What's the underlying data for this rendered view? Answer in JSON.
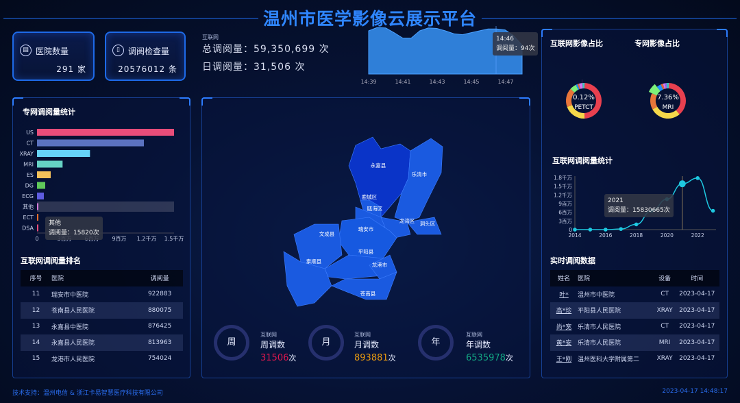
{
  "title": "温州市医学影像云展示平台",
  "stats": {
    "hospitals": {
      "label": "医院数量",
      "value": "291",
      "unit": "家",
      "icon": "hospital-icon"
    },
    "exams": {
      "label": "调阅检查量",
      "value": "20576012",
      "unit": "条",
      "icon": "document-icon"
    }
  },
  "totals": {
    "source": "互联网",
    "total_label": "总调阅量：",
    "total_value": "59,350,699",
    "total_unit": "次",
    "daily_label": "日调阅量：",
    "daily_value": "31,506",
    "daily_unit": "次"
  },
  "realtime_chart": {
    "type": "area",
    "x_ticks": [
      "14:39",
      "14:41",
      "14:43",
      "14:45",
      "14:47"
    ],
    "x": [
      "14:39",
      "14:39:30",
      "14:40",
      "14:40:30",
      "14:41",
      "14:41:30",
      "14:42",
      "14:42:30",
      "14:43",
      "14:43:30",
      "14:44",
      "14:44:30",
      "14:45",
      "14:45:30",
      "14:46",
      "14:46:30",
      "14:47",
      "14:47:30",
      "14:47:50"
    ],
    "values": [
      90,
      97,
      96,
      86,
      75,
      75,
      90,
      96,
      95,
      90,
      84,
      82,
      86,
      90,
      94,
      94,
      92,
      80,
      60
    ],
    "tooltip": {
      "time": "14:46",
      "label": "调阅量：94次"
    }
  },
  "special_stats": {
    "title": "专网调阅量统计",
    "chart_data": {
      "type": "bar",
      "orientation": "horizontal",
      "categories": [
        "US",
        "CT",
        "XRAY",
        "MRI",
        "ES",
        "DG",
        "ECG",
        "其他",
        "ECT",
        "DSA"
      ],
      "values": [
        15000000,
        11700000,
        5800000,
        2800000,
        1500000,
        900000,
        750000,
        15820,
        80000,
        80000
      ],
      "x_ticks": [
        "0",
        "3百万",
        "6百万",
        "9百万",
        "1.2千万",
        "1.5千万"
      ],
      "xlim": [
        0,
        15000000
      ],
      "colors": [
        "#e84d7a",
        "#5b72c0",
        "#66d3f8",
        "#66d2c4",
        "#f2c05a",
        "#5fc85a",
        "#5e5ce0",
        "#d57bdb",
        "#e8702a",
        "#e84d7a"
      ],
      "tooltip": {
        "name": "其他",
        "label": "调阅量：15820次"
      }
    }
  },
  "ranking": {
    "title": "互联网调阅量排名",
    "columns": [
      "序号",
      "医院",
      "调阅量"
    ],
    "rows": [
      [
        "11",
        "瑞安市中医院",
        "922883"
      ],
      [
        "12",
        "苍南县人民医院",
        "880075"
      ],
      [
        "13",
        "永嘉县中医院",
        "876425"
      ],
      [
        "14",
        "永嘉县人民医院",
        "813963"
      ],
      [
        "15",
        "龙港市人民医院",
        "754024"
      ]
    ]
  },
  "map": {
    "regions": [
      "永嘉县",
      "乐清市",
      "鹿城区",
      "瓯海区",
      "龙湾区",
      "洞头区",
      "瑞安市",
      "文成县",
      "平阳县",
      "泰顺县",
      "龙港市",
      "苍南县"
    ]
  },
  "periods": [
    {
      "circle": "周",
      "source": "互联网",
      "label": "周调数",
      "value": "31506",
      "unit": "次",
      "color": "#e0184e"
    },
    {
      "circle": "月",
      "source": "互联网",
      "label": "月调数",
      "value": "893881",
      "unit": "次",
      "color": "#e89a10"
    },
    {
      "circle": "年",
      "source": "互联网",
      "label": "年调数",
      "value": "6535978",
      "unit": "次",
      "color": "#13a884"
    }
  ],
  "donuts": [
    {
      "title": "互联网影像占比",
      "pct": "0.12%",
      "name": "PETCT",
      "chart_data": {
        "type": "pie",
        "values": [
          48,
          20,
          17,
          6,
          1.5,
          1.5,
          3,
          0.12,
          2
        ],
        "colors": [
          "#e8404f",
          "#f5d84a",
          "#e8763a",
          "#7cf07a",
          "#1e90ff",
          "#e06a3a",
          "#d577f0",
          "#ff66cc",
          "#40c8c0"
        ],
        "highlight": 7
      }
    },
    {
      "title": "专网影像占比",
      "pct": "7.36%",
      "name": "MRI",
      "chart_data": {
        "type": "pie",
        "values": [
          38,
          28,
          15,
          7.36,
          4,
          2,
          2,
          1.5,
          2
        ],
        "colors": [
          "#e8404f",
          "#f5d84a",
          "#e8763a",
          "#7cf07a",
          "#1e90ff",
          "#e06a3a",
          "#d577f0",
          "#8a6cf0",
          "#40c8c0"
        ],
        "highlight": 3
      }
    }
  ],
  "yearly": {
    "title": "互联网调阅量统计",
    "chart_data": {
      "type": "line",
      "x": [
        2014,
        2015,
        2016,
        2017,
        2018,
        2019,
        2020,
        2021,
        2022,
        2023
      ],
      "values": [
        0,
        0,
        0,
        200000,
        1800000,
        6500000,
        10500000,
        15830665,
        17800000,
        6500000
      ],
      "x_ticks": [
        "2014",
        "2016",
        "2018",
        "2020",
        "2022"
      ],
      "y_ticks": [
        "0",
        "3百万",
        "6百万",
        "9百万",
        "1.2千万",
        "1.5千万",
        "1.8千万"
      ],
      "ylim": [
        0,
        18000000
      ],
      "tooltip": {
        "year": "2021",
        "label": "调阅量：15830665次"
      }
    }
  },
  "realtime": {
    "title": "实时调阅数据",
    "columns": [
      "姓名",
      "医院",
      "设备",
      "时间"
    ],
    "rows": [
      [
        "叶*",
        "温州市中医院",
        "CT",
        "2023-04-17"
      ],
      [
        "高*珍",
        "平阳县人民医院",
        "XRAY",
        "2023-04-17"
      ],
      [
        "尚*宽",
        "乐清市人民医院",
        "CT",
        "2023-04-17"
      ],
      [
        "黄*安",
        "乐清市人民医院",
        "MRI",
        "2023-04-17"
      ],
      [
        "王*刚",
        "温州医科大学附属第二",
        "XRAY",
        "2023-04-17"
      ]
    ]
  },
  "footer": {
    "support": "技术支持：温州电信 & 浙江卡易智慧医疗科技有限公司",
    "datetime": "2023-04-17 14:48:17"
  }
}
